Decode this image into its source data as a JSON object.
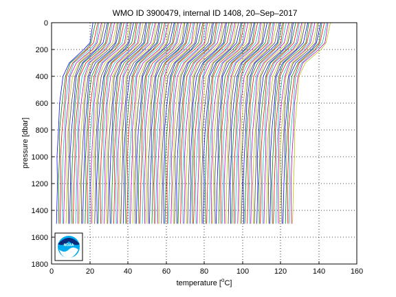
{
  "chart_data": {
    "type": "line",
    "title": "WMO ID 3900479, internal ID 1408, 20–Sep–2017",
    "xlabel": "temperature [",
    "xlabel_unit": "o",
    "xlabel_end": "C]",
    "ylabel": "pressure [dbar]",
    "xlim": [
      0,
      160
    ],
    "ylim": [
      0,
      1800
    ],
    "y_reversed": true,
    "grid": true,
    "x_ticks": [
      0,
      20,
      40,
      60,
      80,
      100,
      120,
      140,
      160
    ],
    "y_ticks": [
      0,
      200,
      400,
      600,
      800,
      1000,
      1200,
      1400,
      1600,
      1800
    ],
    "x_tick_labels": [
      "0",
      "20",
      "40",
      "60",
      "80",
      "100",
      "120",
      "140",
      "160"
    ],
    "y_tick_labels": [
      "0",
      "200",
      "400",
      "600",
      "800",
      "1000",
      "1200",
      "1400",
      "1600",
      "1800"
    ],
    "profile_offset_step": 1,
    "profile_count": 125,
    "profile_shape": {
      "pressure": [
        0,
        150,
        200,
        300,
        400,
        600,
        800,
        1000,
        1200,
        1500
      ],
      "temperature": [
        22,
        20,
        17,
        9,
        6,
        4.5,
        3.5,
        3,
        2.8,
        2.6
      ]
    },
    "profile_colors": [
      "#0000ff",
      "#008000",
      "#ff0000",
      "#00bfbf",
      "#bf00bf",
      "#bfbf00",
      "#404040"
    ],
    "logo": {
      "name": "noaa-logo",
      "text": "NOAA"
    }
  }
}
